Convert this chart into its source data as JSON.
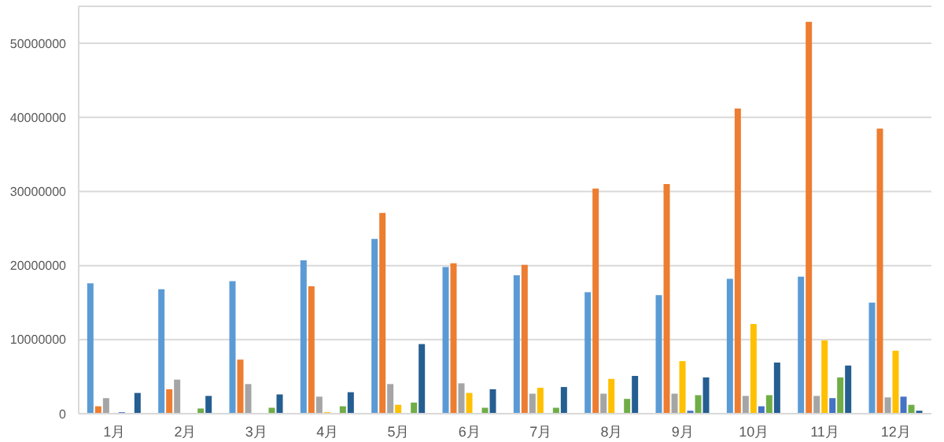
{
  "chart_data": {
    "type": "bar",
    "categories": [
      "1月",
      "2月",
      "3月",
      "4月",
      "5月",
      "6月",
      "7月",
      "8月",
      "9月",
      "10月",
      "11月",
      "12月"
    ],
    "series": [
      {
        "color": "#5b9bd5",
        "values": [
          17600000,
          16800000,
          17900000,
          20700000,
          23600000,
          19800000,
          18700000,
          16400000,
          16000000,
          18200000,
          18500000,
          15000000
        ]
      },
      {
        "color": "#ed7d31",
        "values": [
          1000000,
          3300000,
          7300000,
          17200000,
          27100000,
          20300000,
          20100000,
          30400000,
          31000000,
          41200000,
          52900000,
          38500000
        ]
      },
      {
        "color": "#a5a5a5",
        "values": [
          2100000,
          4600000,
          4000000,
          2300000,
          4000000,
          4100000,
          2700000,
          2700000,
          2700000,
          2400000,
          2400000,
          2200000
        ]
      },
      {
        "color": "#ffc000",
        "values": [
          0,
          0,
          100000,
          200000,
          1200000,
          2800000,
          3500000,
          4700000,
          7100000,
          12100000,
          9900000,
          8500000
        ]
      },
      {
        "color": "#4472c4",
        "values": [
          200000,
          0,
          0,
          0,
          0,
          0,
          0,
          100000,
          400000,
          1000000,
          2100000,
          2300000
        ]
      },
      {
        "color": "#70ad47",
        "values": [
          0,
          700000,
          800000,
          1000000,
          1500000,
          800000,
          800000,
          2000000,
          2500000,
          2500000,
          4900000,
          1200000
        ]
      },
      {
        "color": "#255e91",
        "values": [
          2800000,
          2400000,
          2600000,
          2900000,
          9400000,
          3300000,
          3600000,
          5100000,
          4900000,
          6900000,
          6500000,
          400000
        ]
      }
    ],
    "ylim": [
      0,
      55000000
    ],
    "yticks": [
      0,
      10000000,
      20000000,
      30000000,
      40000000,
      50000000
    ],
    "grid": "y",
    "legend": false
  }
}
